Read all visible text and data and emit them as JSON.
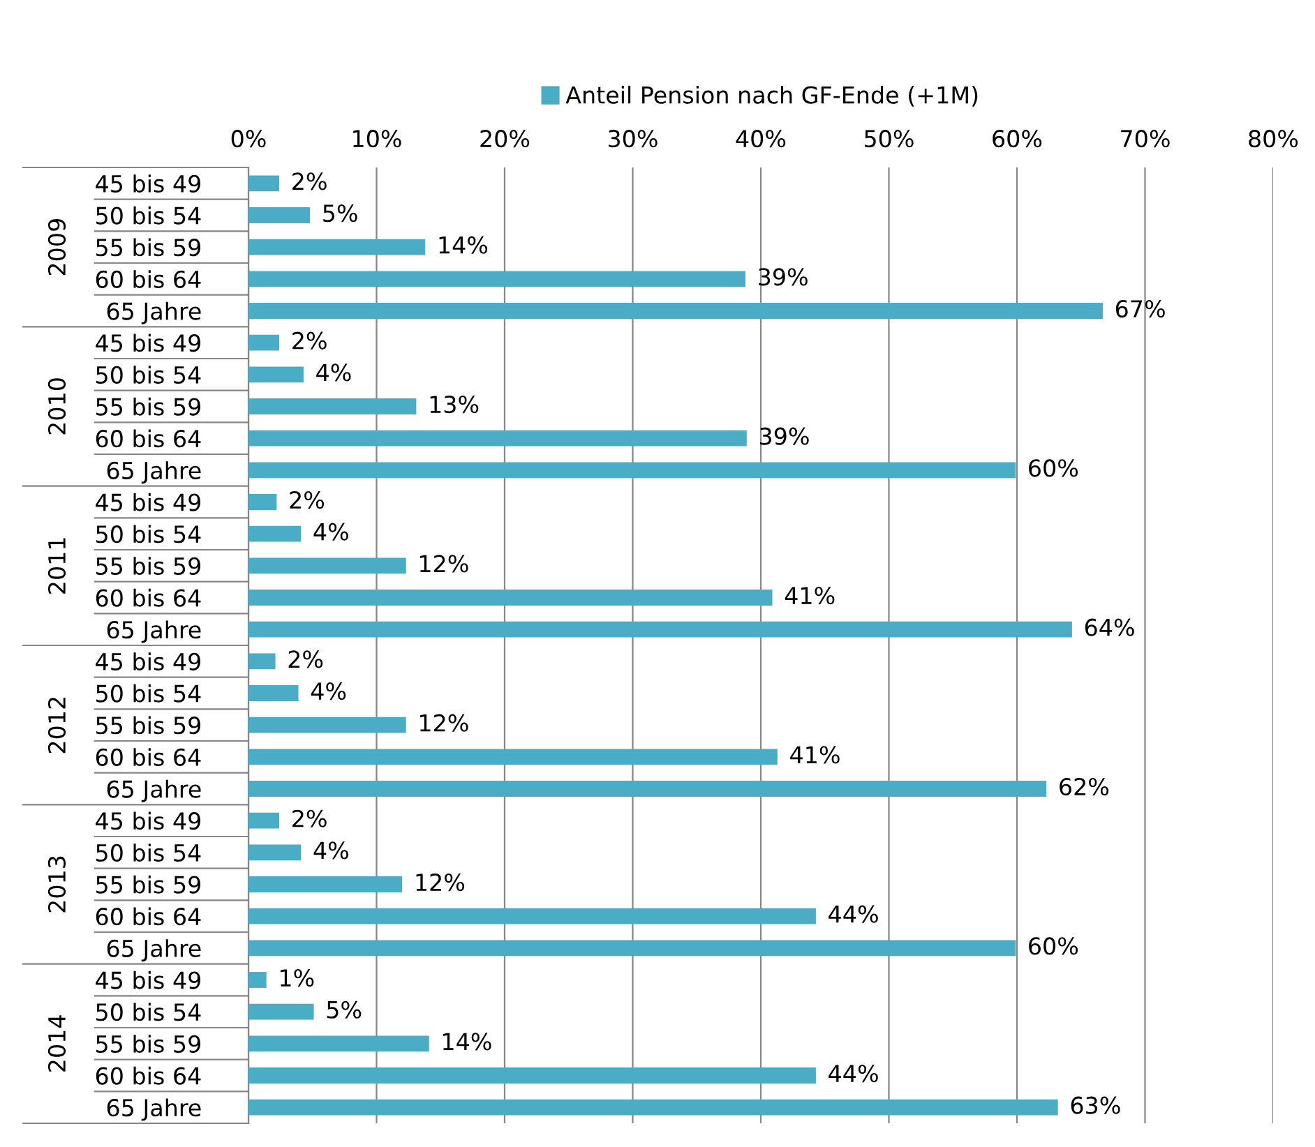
{
  "chart_data": {
    "type": "bar",
    "orientation": "horizontal",
    "categories": [
      "45 bis 49",
      "50 bis 54",
      "55 bis 59",
      "60 bis 64",
      "65 Jahre",
      "45 bis 49",
      "50 bis 54",
      "55 bis 59",
      "60 bis 64",
      "65 Jahre",
      "45 bis 49",
      "50 bis 54",
      "55 bis 59",
      "60 bis 64",
      "65 Jahre",
      "45 bis 49",
      "50 bis 54",
      "55 bis 59",
      "60 bis 64",
      "65 Jahre",
      "45 bis 49",
      "50 bis 54",
      "55 bis 59",
      "60 bis 64",
      "65 Jahre",
      "45 bis 49",
      "50 bis 54",
      "55 bis 59",
      "60 bis 64",
      "65 Jahre"
    ],
    "series": [
      {
        "name": "Anteil Pension nach GF-Ende (+1M)",
        "color": "#4bacc6",
        "values": [
          2.4,
          4.8,
          13.8,
          38.8,
          66.7,
          2.4,
          4.3,
          13.1,
          38.9,
          59.9,
          2.2,
          4.1,
          12.3,
          40.9,
          64.3,
          2.1,
          3.9,
          12.3,
          41.3,
          62.3,
          2.4,
          4.1,
          12.0,
          44.3,
          59.9,
          1.4,
          5.1,
          14.1,
          44.3,
          63.2
        ],
        "value_labels": [
          "2%",
          "5%",
          "14%",
          "39%",
          "67%",
          "2%",
          "4%",
          "13%",
          "39%",
          "60%",
          "2%",
          "4%",
          "12%",
          "41%",
          "64%",
          "2%",
          "4%",
          "12%",
          "41%",
          "62%",
          "2%",
          "4%",
          "12%",
          "44%",
          "60%",
          "1%",
          "5%",
          "14%",
          "44%",
          "63%"
        ]
      }
    ],
    "annotations": [
      "2009",
      "2010",
      "2011",
      "2012",
      "2013",
      "2014"
    ],
    "xlim": [
      0,
      80
    ],
    "xticks": [
      {
        "value": 0,
        "label": "0%"
      },
      {
        "value": 10,
        "label": "10%"
      },
      {
        "value": 20,
        "label": "20%"
      },
      {
        "value": 30,
        "label": "30%"
      },
      {
        "value": 40,
        "label": "40%"
      },
      {
        "value": 50,
        "label": "50%"
      },
      {
        "value": 60,
        "label": "60%"
      },
      {
        "value": 70,
        "label": "70%"
      },
      {
        "value": 80,
        "label": "80%"
      }
    ],
    "grid": "x",
    "legend": "top"
  }
}
